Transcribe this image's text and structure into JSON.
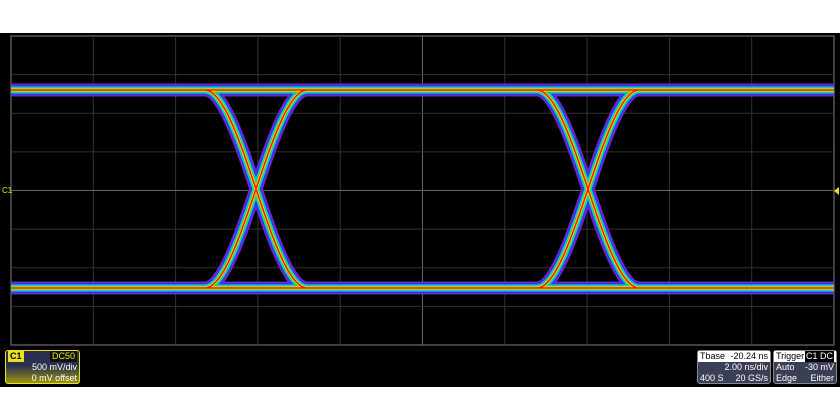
{
  "channel": {
    "name": "C1",
    "coupling": "DC50",
    "vdiv": "500 mV/div",
    "offset": "0 mV offset",
    "marker": "C1",
    "color": "#e8e020"
  },
  "timebase": {
    "label": "Tbase",
    "delay": "-20.24 ns",
    "hdiv": "2.00 ns/div",
    "samples": "400 S",
    "rate": "20 GS/s"
  },
  "trigger": {
    "label": "Trigger",
    "coupling": "C1 DC",
    "mode": "Auto",
    "level": "-30 mV",
    "type": "Edge",
    "slope": "Either"
  },
  "display": {
    "type": "eye-diagram",
    "persistence_colors": [
      "#7a1fd0",
      "#2a3cf0",
      "#10c8e0",
      "#20e040",
      "#f0e020",
      "#ff1010"
    ]
  }
}
